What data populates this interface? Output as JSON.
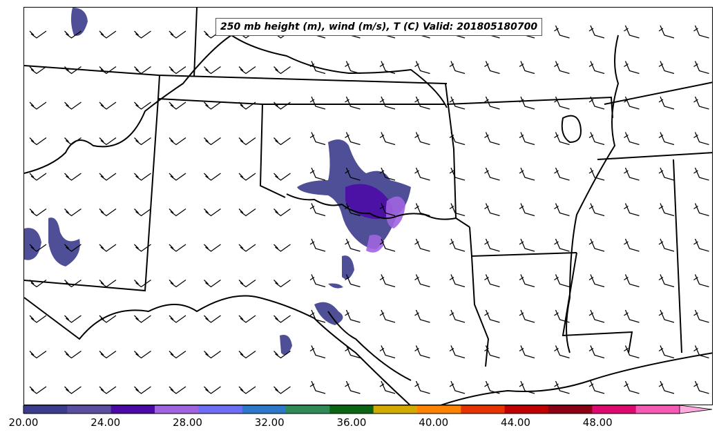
{
  "title": "250 mb height (m), wind (m/s), T (C) Valid: 201805180700",
  "colorbar": {
    "min": 20,
    "max": 52,
    "step": 2,
    "extend": "max",
    "tick_labels": [
      "20.00",
      "24.00",
      "28.00",
      "32.00",
      "36.00",
      "40.00",
      "44.00",
      "48.00"
    ],
    "colors": [
      "#3c3c8c",
      "#5a4e9e",
      "#4b0aa6",
      "#a064e0",
      "#6e6ef5",
      "#2d78c8",
      "#2e8b57",
      "#0a6414",
      "#d2aa00",
      "#ff8200",
      "#e63200",
      "#be0000",
      "#8c0014",
      "#dc0a6e",
      "#f55ab4",
      "#ffaade"
    ]
  },
  "map": {
    "wind_barb_spacing": "regular grid",
    "wind_direction": "west-northwesterly"
  }
}
